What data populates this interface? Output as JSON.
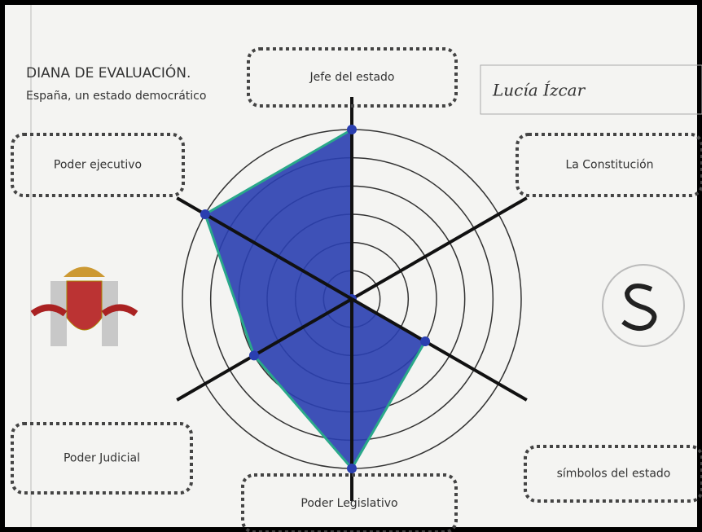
{
  "header": {
    "title": "DIANA DE EVALUACIÓN.",
    "subtitle": "España, un estado democrático",
    "name": "Lucía Ízcar"
  },
  "chart_data": {
    "type": "radar",
    "categories": [
      "Jefe del estado",
      "La Constitución",
      "símbolos del estado",
      "Poder Legislativo",
      "Poder Judicial",
      "Poder ejecutivo"
    ],
    "values": [
      6,
      0,
      3,
      6,
      4,
      6
    ],
    "color": "#2a3fb0",
    "edge_color": "#2aa88a",
    "rlim": [
      0,
      6
    ],
    "rticks": [
      1,
      2,
      3,
      4,
      5,
      6
    ],
    "grid": true
  }
}
